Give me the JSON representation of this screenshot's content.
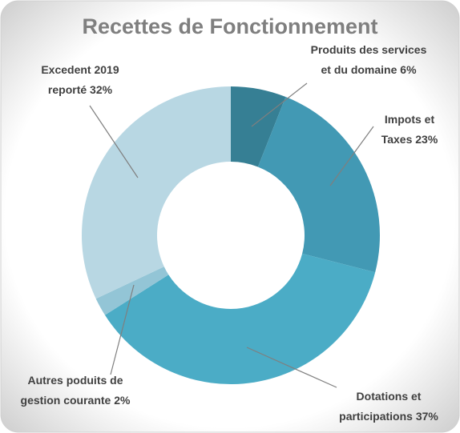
{
  "chart_data": {
    "type": "donut",
    "title": "Recettes de Fonctionnement",
    "categories": [
      "Produits des services et du domaine",
      "Impots et Taxes",
      "Dotations et participations",
      "Autres poduits de gestion courante",
      "Excedent 2019 reporté"
    ],
    "values": [
      6,
      23,
      37,
      2,
      32
    ],
    "value_labels": [
      "6%",
      "23%",
      "37%",
      "2%",
      "32%"
    ],
    "colors": [
      "#367f94",
      "#4299b4",
      "#4bacc6",
      "#93c5d6",
      "#b8d7e3"
    ]
  }
}
